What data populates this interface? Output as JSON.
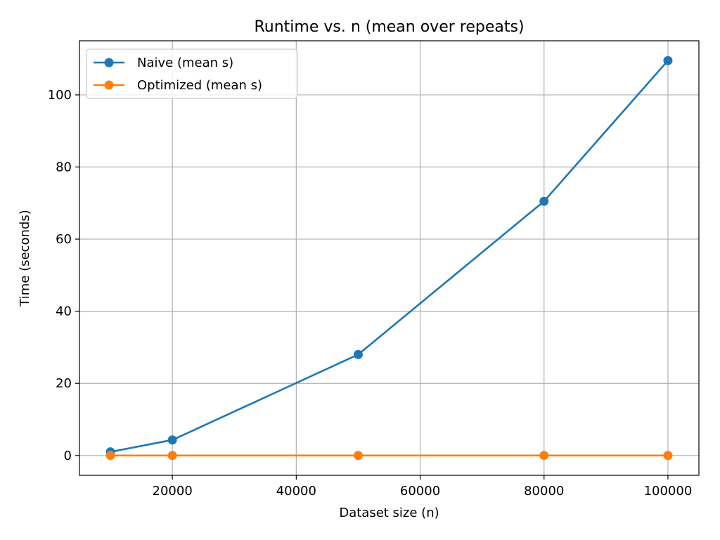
{
  "chart_data": {
    "type": "line",
    "title": "Runtime vs. n (mean over repeats)",
    "xlabel": "Dataset size (n)",
    "ylabel": "Time (seconds)",
    "x": [
      10000,
      20000,
      50000,
      80000,
      100000
    ],
    "xlim": [
      5000,
      105000
    ],
    "ylim": [
      -5.5,
      115
    ],
    "xticks": [
      20000,
      40000,
      60000,
      80000,
      100000
    ],
    "yticks": [
      0,
      20,
      40,
      60,
      80,
      100
    ],
    "grid": true,
    "legend_position": "top-left",
    "series": [
      {
        "name": "Naive (mean s)",
        "color": "#1f77b4",
        "values": [
          1.0,
          4.3,
          28.0,
          70.5,
          109.5
        ]
      },
      {
        "name": "Optimized (mean s)",
        "color": "#ff7f0e",
        "values": [
          0.0,
          0.0,
          0.0,
          0.0,
          0.0
        ]
      }
    ]
  }
}
